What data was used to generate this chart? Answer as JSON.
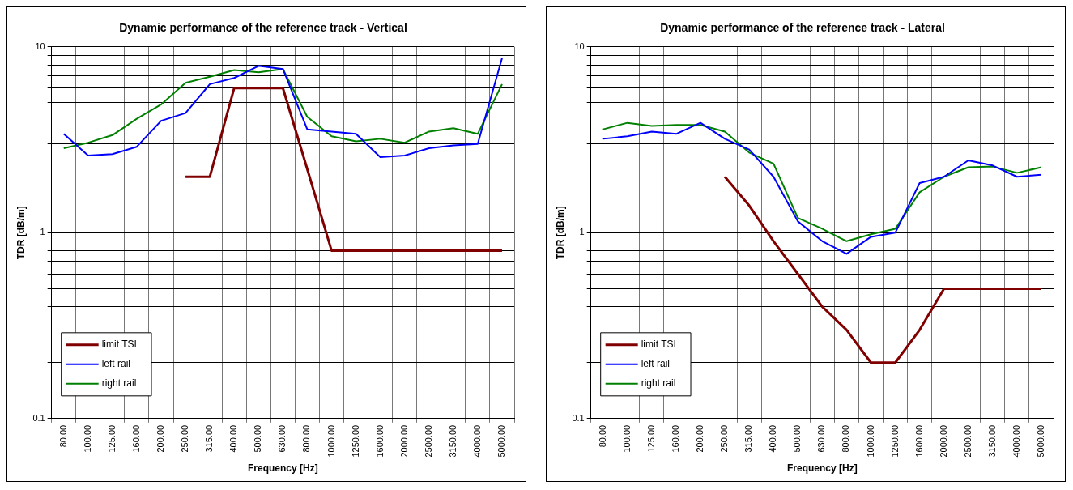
{
  "chart_data": [
    {
      "type": "line",
      "title": "Dynamic performance of the reference track - Vertical",
      "xlabel": "Frequency [Hz]",
      "ylabel": "TDR [dB/m]",
      "categories": [
        "80.00",
        "100.00",
        "125.00",
        "160.00",
        "200.00",
        "250.00",
        "315.00",
        "400.00",
        "500.00",
        "630.00",
        "800.00",
        "1000.00",
        "1250.00",
        "1600.00",
        "2000.00",
        "2500.00",
        "3150.00",
        "4000.00",
        "5000.00"
      ],
      "series": [
        {
          "name": "limit TSI",
          "color": "#800000",
          "values": [
            null,
            null,
            null,
            null,
            null,
            2,
            2,
            6,
            6,
            6,
            2.2,
            0.8,
            0.8,
            0.8,
            0.8,
            0.8,
            0.8,
            0.8,
            0.8
          ]
        },
        {
          "name": "left rail",
          "color": "#0000ff",
          "values": [
            3.4,
            2.6,
            2.65,
            2.9,
            4.0,
            4.4,
            6.3,
            6.8,
            7.9,
            7.6,
            3.6,
            3.5,
            3.4,
            2.55,
            2.6,
            2.85,
            2.95,
            3.0,
            8.7
          ]
        },
        {
          "name": "right rail",
          "color": "#008000",
          "values": [
            2.85,
            3.05,
            3.35,
            4.1,
            4.9,
            6.4,
            6.9,
            7.5,
            7.3,
            7.6,
            4.2,
            3.3,
            3.1,
            3.2,
            3.05,
            3.5,
            3.65,
            3.4,
            6.3
          ]
        }
      ],
      "log": "y",
      "ylim": [
        0.1,
        10
      ],
      "yticks": [
        0.1,
        {
          "value": 0.2,
          "label": null
        },
        {
          "value": 0.3,
          "label": null
        },
        {
          "value": 0.4,
          "label": null
        },
        {
          "value": 0.5,
          "label": null
        },
        {
          "value": 0.6,
          "label": null
        },
        {
          "value": 0.7,
          "label": null
        },
        {
          "value": 0.8,
          "label": null
        },
        {
          "value": 0.9,
          "label": null
        },
        1,
        {
          "value": 2,
          "label": null
        },
        {
          "value": 3,
          "label": null
        },
        {
          "value": 4,
          "label": null
        },
        {
          "value": 5,
          "label": null
        },
        {
          "value": 6,
          "label": null
        },
        {
          "value": 7,
          "label": null
        },
        {
          "value": 8,
          "label": null
        },
        {
          "value": 9,
          "label": null
        },
        10
      ],
      "grid": true,
      "legend": "bottom left",
      "marker": "none",
      "line_style": "solid"
    },
    {
      "type": "line",
      "title": "Dynamic performance of the reference track - Lateral",
      "xlabel": "Frequency [Hz]",
      "ylabel": "TDR [dB/m]",
      "categories": [
        "80.00",
        "100.00",
        "125.00",
        "160.00",
        "200.00",
        "250.00",
        "315.00",
        "400.00",
        "500.00",
        "630.00",
        "800.00",
        "1000.00",
        "1250.00",
        "1600.00",
        "2000.00",
        "2500.00",
        "3150.00",
        "4000.00",
        "5000.00"
      ],
      "series": [
        {
          "name": "limit TSI",
          "color": "#800000",
          "values": [
            null,
            null,
            null,
            null,
            null,
            2.0,
            1.4,
            0.9,
            0.6,
            0.4,
            0.3,
            0.2,
            0.2,
            0.3,
            0.5,
            0.5,
            0.5,
            0.5,
            0.5
          ]
        },
        {
          "name": "left rail",
          "color": "#0000ff",
          "values": [
            3.2,
            3.3,
            3.5,
            3.4,
            3.9,
            3.2,
            2.8,
            2.0,
            1.15,
            0.9,
            0.77,
            0.95,
            1.0,
            1.85,
            2.0,
            2.45,
            2.3,
            2.0,
            2.05
          ]
        },
        {
          "name": "right rail",
          "color": "#008000",
          "values": [
            3.6,
            3.9,
            3.75,
            3.8,
            3.8,
            3.5,
            2.7,
            2.35,
            1.2,
            1.05,
            0.9,
            0.98,
            1.05,
            1.65,
            2.0,
            2.25,
            2.27,
            2.1,
            2.25
          ]
        }
      ],
      "log": "y",
      "ylim": [
        0.1,
        10
      ],
      "yticks": [
        0.1,
        {
          "value": 0.2,
          "label": null
        },
        {
          "value": 0.3,
          "label": null
        },
        {
          "value": 0.4,
          "label": null
        },
        {
          "value": 0.5,
          "label": null
        },
        {
          "value": 0.6,
          "label": null
        },
        {
          "value": 0.7,
          "label": null
        },
        {
          "value": 0.8,
          "label": null
        },
        {
          "value": 0.9,
          "label": null
        },
        1,
        {
          "value": 2,
          "label": null
        },
        {
          "value": 3,
          "label": null
        },
        {
          "value": 4,
          "label": null
        },
        {
          "value": 5,
          "label": null
        },
        {
          "value": 6,
          "label": null
        },
        {
          "value": 7,
          "label": null
        },
        {
          "value": 8,
          "label": null
        },
        {
          "value": 9,
          "label": null
        },
        10
      ],
      "grid": true,
      "legend": "bottom left",
      "marker": "none",
      "line_style": "solid"
    }
  ]
}
